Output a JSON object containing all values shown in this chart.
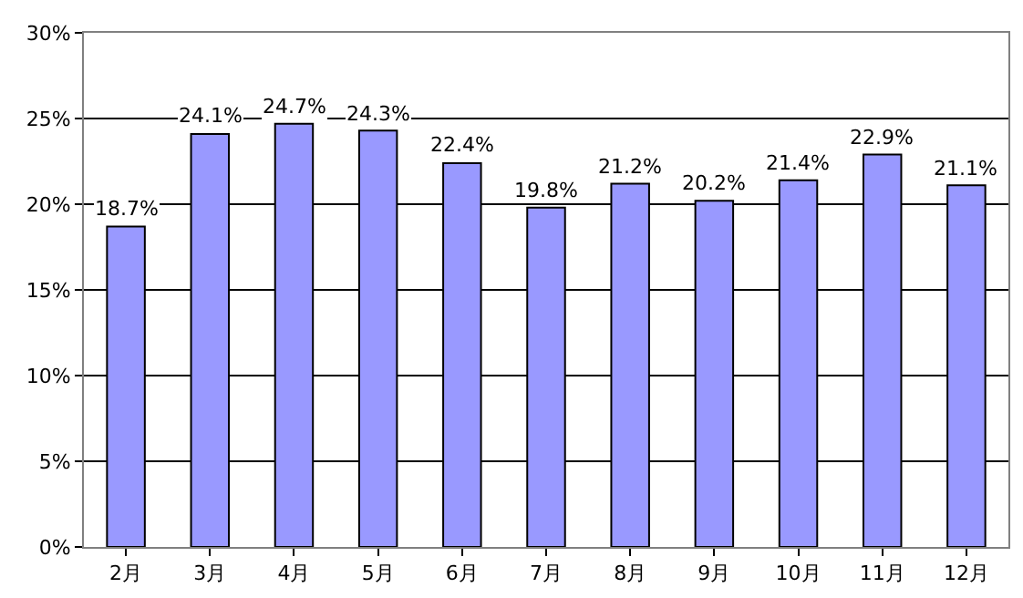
{
  "chart_data": {
    "type": "bar",
    "categories": [
      "2月",
      "3月",
      "4月",
      "5月",
      "6月",
      "7月",
      "8月",
      "9月",
      "10月",
      "11月",
      "12月"
    ],
    "values": [
      18.7,
      24.1,
      24.7,
      24.3,
      22.4,
      19.8,
      21.2,
      20.2,
      21.4,
      22.9,
      21.1
    ],
    "value_labels": [
      "18.7%",
      "24.1%",
      "24.7%",
      "24.3%",
      "22.4%",
      "19.8%",
      "21.2%",
      "20.2%",
      "21.4%",
      "22.9%",
      "21.1%"
    ],
    "color": "#9999ff",
    "ylim": [
      0,
      30
    ],
    "yticks": [
      {
        "value": 0,
        "label": "0%"
      },
      {
        "value": 5,
        "label": "5%"
      },
      {
        "value": 10,
        "label": "10%"
      },
      {
        "value": 15,
        "label": "15%"
      },
      {
        "value": 20,
        "label": "20%"
      },
      {
        "value": 25,
        "label": "25%"
      },
      {
        "value": 30,
        "label": "30%"
      }
    ],
    "grid": "y"
  }
}
